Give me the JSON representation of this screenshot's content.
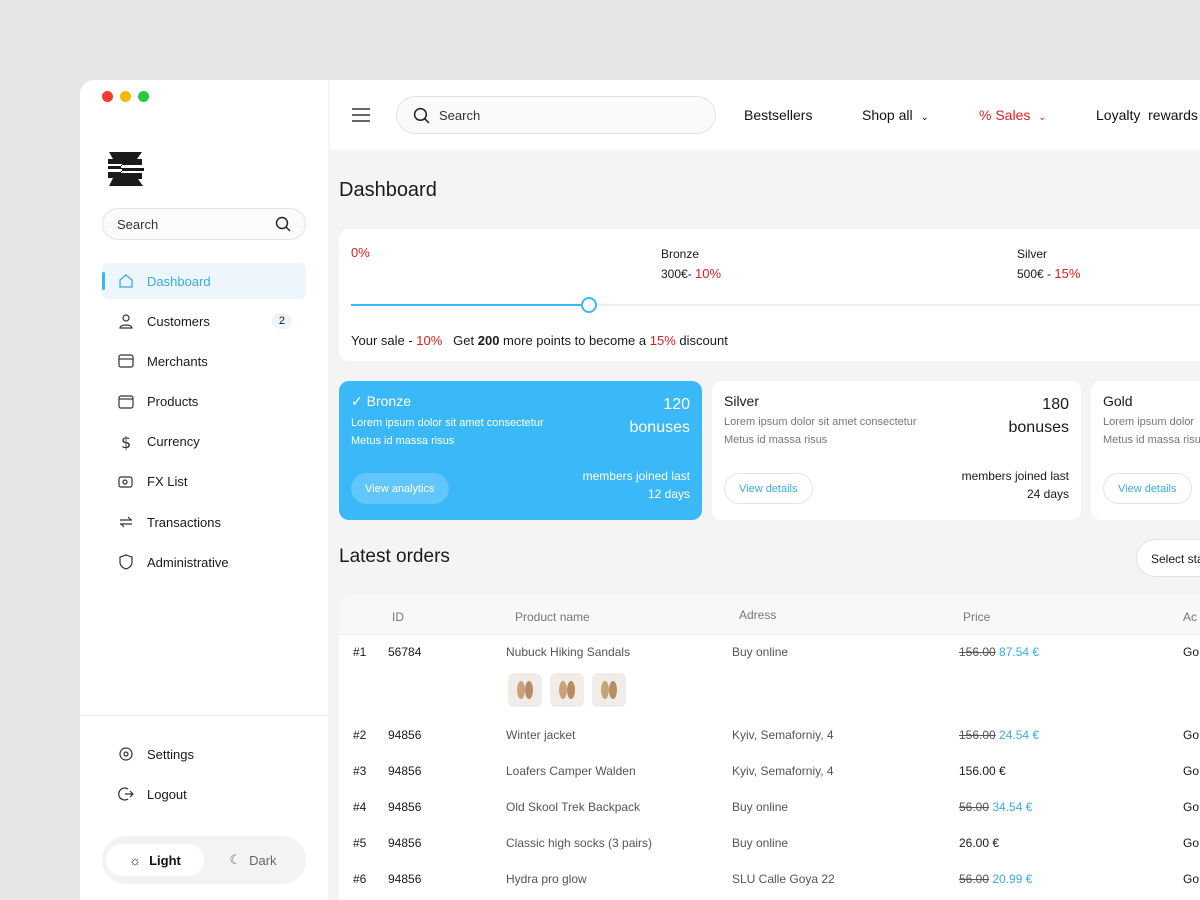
{
  "window": {
    "controls": [
      "close",
      "minimize",
      "maximize"
    ],
    "colors": {
      "close": "#f23a2f",
      "minimize": "#f5b800",
      "maximize": "#27c93f"
    }
  },
  "sidebar": {
    "search_placeholder": "Search",
    "items": [
      {
        "label": "Dashboard",
        "icon": "home-icon",
        "active": true
      },
      {
        "label": "Customers",
        "icon": "users-icon",
        "badge": "2"
      },
      {
        "label": "Merchants",
        "icon": "store-icon"
      },
      {
        "label": "Products",
        "icon": "box-icon"
      },
      {
        "label": "Currency",
        "icon": "dollar-icon"
      },
      {
        "label": "FX List",
        "icon": "fx-icon"
      },
      {
        "label": "Transactions",
        "icon": "transfer-icon"
      },
      {
        "label": "Administrative",
        "icon": "shield-icon"
      }
    ],
    "bottom": [
      {
        "label": "Settings",
        "icon": "gear-icon"
      },
      {
        "label": "Logout",
        "icon": "logout-icon"
      }
    ],
    "theme": {
      "light": "Light",
      "dark": "Dark",
      "selected": "Light"
    }
  },
  "topbar": {
    "search_placeholder": "Search",
    "links": [
      "Bestsellers",
      "Shop all",
      "% Sales",
      "Loyalty  rewards"
    ]
  },
  "page_title": "Dashboard",
  "progress": {
    "start": "0%",
    "tiers": [
      {
        "name": "Bronze",
        "amount": "300€- ",
        "pct": "10%"
      },
      {
        "name": "Silver",
        "amount": "500€ - ",
        "pct": "15%"
      }
    ],
    "value_fraction": 0.27,
    "sale_label": "Your sale - ",
    "sale_pct": "10%",
    "msg_pre": "Get ",
    "msg_points": "200",
    "msg_mid": " more points to become a ",
    "msg_pct": "15%",
    "msg_post": " discount"
  },
  "tier_cards": [
    {
      "name": "Bronze",
      "selected": true,
      "desc1": "Lorem ipsum dolor sit amet consectetur",
      "desc2": "Metus id massa risus",
      "count": "120",
      "unit": "bonuses",
      "members1": "members joined last",
      "members2": "12 days",
      "button": "View analytics"
    },
    {
      "name": "Silver",
      "desc1": "Lorem ipsum dolor sit amet consectetur",
      "desc2": "Metus id massa risus",
      "count": "180",
      "unit": "bonuses",
      "members1": "members joined last",
      "members2": "24 days",
      "button": "View details"
    },
    {
      "name": "Gold",
      "desc1": "Lorem ipsum dolor",
      "desc2": "Metus id massa risus",
      "button": "View details"
    }
  ],
  "orders": {
    "title": "Latest orders",
    "status_select": "Select status",
    "columns": [
      "ID",
      "Product name",
      "Adress",
      "Price",
      "Ac"
    ],
    "rows": [
      {
        "num": "#1",
        "id": "56784",
        "product": "Nubuck Hiking Sandals",
        "address": "Buy online",
        "old_price": "156.00",
        "price": "87.54 €",
        "action": "Go"
      },
      {
        "num": "#2",
        "id": "94856",
        "product": "Winter jacket",
        "address": "Kyiv, Semaforniy, 4",
        "old_price": "156.00",
        "price": "24.54 €",
        "action": "Go"
      },
      {
        "num": "#3",
        "id": "94856",
        "product": "Loafers Camper Walden",
        "address": "Kyiv, Semaforniy, 4",
        "old_price": "",
        "price": "156.00 €",
        "action": "Go"
      },
      {
        "num": "#4",
        "id": "94856",
        "product": "Old Skool Trek Backpack",
        "address": "Buy online",
        "old_price": "56.00",
        "price": "34.54 €",
        "action": "Go"
      },
      {
        "num": "#5",
        "id": "94856",
        "product": "Classic high socks (3 pairs)",
        "address": "Buy online",
        "old_price": "",
        "price": "26.00 €",
        "action": "Go"
      },
      {
        "num": "#6",
        "id": "94856",
        "product": "Hydra pro glow",
        "address": "SLU Calle Goya 22",
        "old_price": "56.00",
        "price": "20.99 €",
        "action": "Go"
      }
    ]
  },
  "colors": {
    "accent": "#3ab8f8",
    "sale": "#e02020"
  }
}
